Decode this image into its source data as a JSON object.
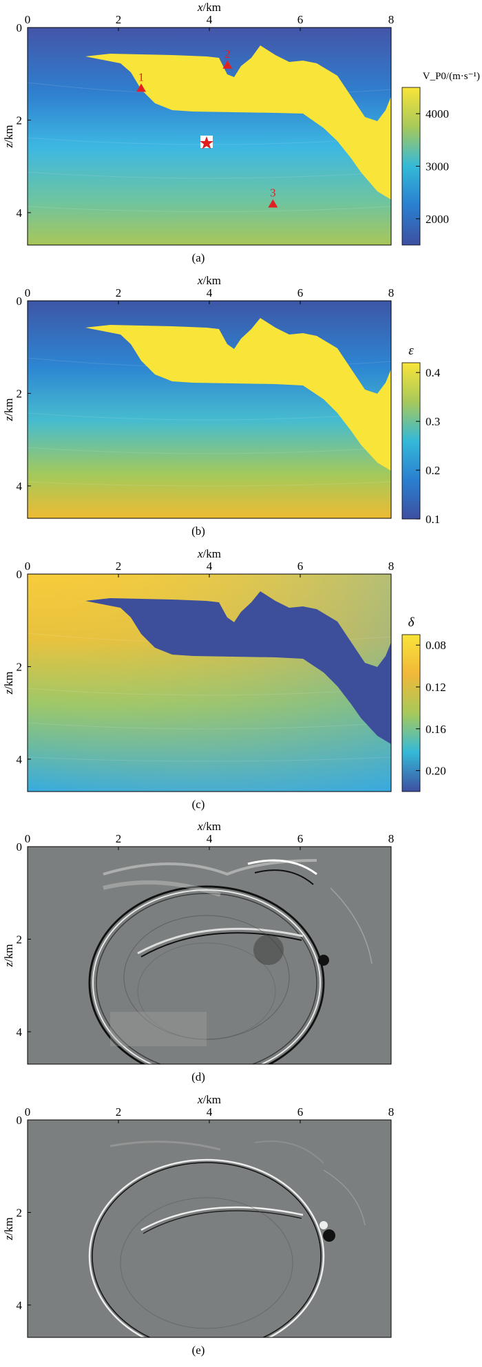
{
  "chart_data": [
    {
      "panel": "(a)",
      "type": "heatmap",
      "xlabel": "x/km",
      "ylabel": "z/km",
      "xticks": [
        "0",
        "2",
        "4",
        "6",
        "8"
      ],
      "yticks": [
        "0",
        "2",
        "4"
      ],
      "xlim": [
        0,
        8
      ],
      "ylim": [
        0,
        4.7
      ],
      "colorbar": {
        "label": "V_P0/(m·s⁻¹)",
        "ticks": [
          "2000",
          "3000",
          "4000"
        ],
        "range": [
          1500,
          4500
        ]
      },
      "markers": {
        "receivers": [
          {
            "label": "1",
            "x": 2.5,
            "z": 1.3
          },
          {
            "label": "2",
            "x": 4.4,
            "z": 0.8
          },
          {
            "label": "3",
            "x": 5.4,
            "z": 3.8
          }
        ],
        "source": {
          "x": 3.9,
          "z": 2.5
        }
      }
    },
    {
      "panel": "(b)",
      "type": "heatmap",
      "xlabel": "x/km",
      "ylabel": "z/km",
      "xticks": [
        "0",
        "2",
        "4",
        "6",
        "8"
      ],
      "yticks": [
        "0",
        "2",
        "4"
      ],
      "xlim": [
        0,
        8
      ],
      "ylim": [
        0,
        4.7
      ],
      "colorbar": {
        "label": "ε",
        "ticks": [
          "0.1",
          "0.2",
          "0.3",
          "0.4"
        ],
        "range": [
          0.1,
          0.42
        ]
      }
    },
    {
      "panel": "(c)",
      "type": "heatmap",
      "xlabel": "x/km",
      "ylabel": "z/km",
      "xticks": [
        "0",
        "2",
        "4",
        "6",
        "8"
      ],
      "yticks": [
        "0",
        "2",
        "4"
      ],
      "xlim": [
        0,
        8
      ],
      "ylim": [
        0,
        4.7
      ],
      "colorbar": {
        "label": "δ",
        "ticks": [
          "0.08",
          "0.12",
          "0.16",
          "0.20"
        ],
        "range": [
          0.07,
          0.22
        ],
        "reversed": true
      }
    },
    {
      "panel": "(d)",
      "type": "heatmap",
      "xlabel": "x/km",
      "ylabel": "z/km",
      "xticks": [
        "0",
        "2",
        "4",
        "6",
        "8"
      ],
      "yticks": [
        "0",
        "2",
        "4"
      ],
      "xlim": [
        0,
        8
      ],
      "ylim": [
        0,
        4.7
      ]
    },
    {
      "panel": "(e)",
      "type": "heatmap",
      "xlabel": "x/km",
      "ylabel": "z/km",
      "xticks": [
        "0",
        "2",
        "4",
        "6",
        "8"
      ],
      "yticks": [
        "0",
        "2",
        "4"
      ],
      "xlim": [
        0,
        8
      ],
      "ylim": [
        0,
        4.7
      ]
    }
  ],
  "colors": {
    "salt_yellow": "#f9e43a",
    "deep_blue": "#3d4f9a",
    "cyan": "#38b3e0",
    "green": "#a8c74a",
    "orange": "#f5b93a",
    "marker_red": "#e02020",
    "wave_gray": "#7c7f7f"
  }
}
